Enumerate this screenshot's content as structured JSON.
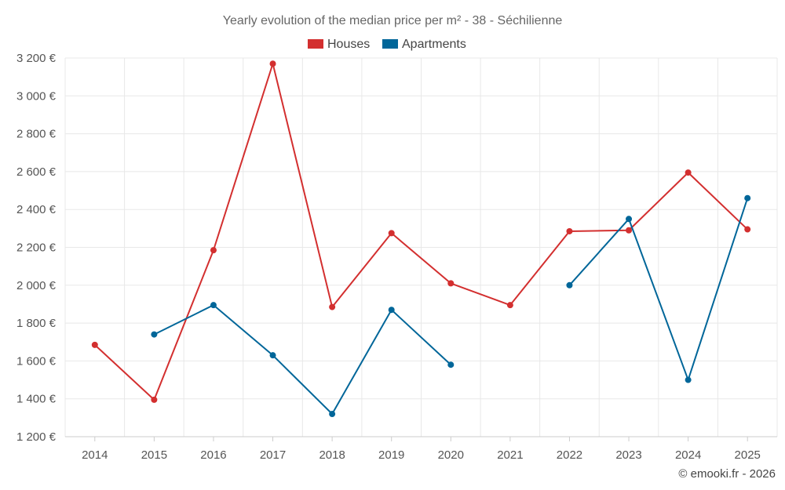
{
  "chart_data": {
    "type": "line",
    "title": "Yearly evolution of the median price per m² - 38 - Séchilienne",
    "categories": [
      "2014",
      "2015",
      "2016",
      "2017",
      "2018",
      "2019",
      "2020",
      "2021",
      "2022",
      "2023",
      "2024",
      "2025"
    ],
    "series": [
      {
        "name": "Houses",
        "color": "#d32f2f",
        "values": [
          1685,
          1395,
          2185,
          3170,
          1885,
          2275,
          2010,
          1895,
          2285,
          2290,
          2595,
          2295
        ]
      },
      {
        "name": "Apartments",
        "color": "#006699",
        "values": [
          null,
          1740,
          1895,
          1630,
          1320,
          1870,
          1580,
          null,
          2000,
          2350,
          1500,
          2460
        ]
      }
    ],
    "yticks": [
      1200,
      1400,
      1600,
      1800,
      2000,
      2200,
      2400,
      2600,
      2800,
      3000,
      3200
    ],
    "ytick_labels": [
      "1 200 €",
      "1 400 €",
      "1 600 €",
      "1 800 €",
      "2 000 €",
      "2 200 €",
      "2 400 €",
      "2 600 €",
      "2 800 €",
      "3 000 €",
      "3 200 €"
    ],
    "ylim": [
      1200,
      3200
    ],
    "xlabel": "",
    "ylabel": "",
    "grid": true,
    "legend": "top-center",
    "credit": "© emooki.fr - 2026"
  }
}
